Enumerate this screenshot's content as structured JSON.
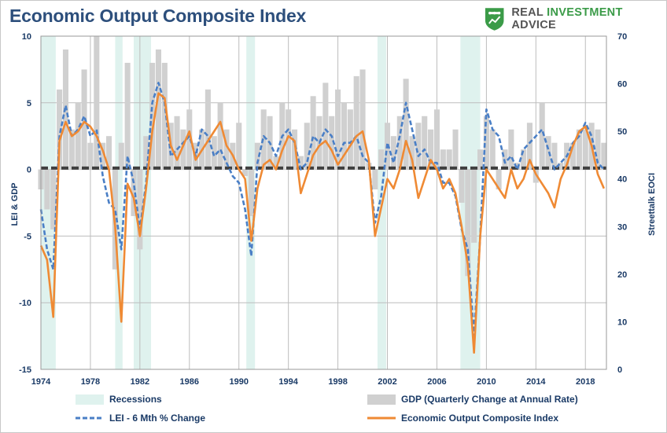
{
  "header": {
    "title": "Economic Output Composite Index",
    "brand_prefix": "REAL ",
    "brand_accent": "INVESTMENT",
    "brand_suffix": " ADVICE",
    "brand_icon": "shield-chart-icon"
  },
  "colors": {
    "title": "#2d4f7c",
    "recession": "#dff2ee",
    "gdp": "#d0d0d0",
    "lei": "#4a7fc6",
    "eoci": "#ef8a34",
    "zero_line": "#404040",
    "grid": "#bdbdbd",
    "brand_green": "#3b9b48"
  },
  "chart_data": {
    "type": "line",
    "title": "Economic Output Composite Index",
    "xlabel": "",
    "ylabel_left": "LEI & GDP",
    "ylabel_right": "Streettalk EOCI",
    "xlim": [
      1974,
      2019.7
    ],
    "ylim_left": [
      -15,
      10
    ],
    "ylim_right": [
      0,
      70
    ],
    "x_ticks": [
      1974,
      1978,
      1982,
      1986,
      1990,
      1994,
      1998,
      2002,
      2006,
      2010,
      2014,
      2018
    ],
    "x_tick_labels": [
      "1974",
      "1978",
      "1982",
      "1986",
      "1990",
      "1994",
      "1998",
      "2002",
      "2006",
      "2010",
      "2014",
      "2018"
    ],
    "y_left_ticks": [
      10,
      5,
      0,
      -5,
      -10,
      -15
    ],
    "y_left_tick_labels": [
      "10",
      "5",
      "0",
      "-5",
      "-10",
      "-15"
    ],
    "y_right_ticks": [
      70,
      60,
      50,
      40,
      30,
      20,
      10,
      0
    ],
    "y_right_tick_labels": [
      "70",
      "60",
      "50",
      "40",
      "30",
      "20",
      "10",
      "0"
    ],
    "zero_line_value": 0.1,
    "recessions": [
      [
        1974.0,
        1975.2
      ],
      [
        1980.0,
        1980.6
      ],
      [
        1981.5,
        1982.9
      ],
      [
        1990.6,
        1991.3
      ],
      [
        2001.2,
        2001.9
      ],
      [
        2007.9,
        2009.5
      ]
    ],
    "legend": [
      {
        "name": "Recessions",
        "kind": "band"
      },
      {
        "name": "GDP (Quarterly Change at Annual Rate)",
        "kind": "bar"
      },
      {
        "name": "LEI - 6 Mth % Change",
        "kind": "dashed-line"
      },
      {
        "name": "Economic Output Composite Index",
        "kind": "line"
      }
    ],
    "series": [
      {
        "name": "GDP (Quarterly Change at Annual Rate)",
        "axis": "left",
        "kind": "bar",
        "x": [
          1974.0,
          1974.5,
          1975.0,
          1975.5,
          1976.0,
          1976.5,
          1977.0,
          1977.5,
          1978.0,
          1978.5,
          1979.0,
          1979.5,
          1980.0,
          1980.5,
          1981.0,
          1981.5,
          1982.0,
          1982.5,
          1983.0,
          1983.5,
          1984.0,
          1984.5,
          1985.0,
          1985.5,
          1986.0,
          1986.5,
          1987.0,
          1987.5,
          1988.0,
          1988.5,
          1989.0,
          1989.5,
          1990.0,
          1990.5,
          1991.0,
          1991.5,
          1992.0,
          1992.5,
          1993.0,
          1993.5,
          1994.0,
          1994.5,
          1995.0,
          1995.5,
          1996.0,
          1996.5,
          1997.0,
          1997.5,
          1998.0,
          1998.5,
          1999.0,
          1999.5,
          2000.0,
          2000.5,
          2001.0,
          2001.5,
          2002.0,
          2002.5,
          2003.0,
          2003.5,
          2004.0,
          2004.5,
          2005.0,
          2005.5,
          2006.0,
          2006.5,
          2007.0,
          2007.5,
          2008.0,
          2008.5,
          2009.0,
          2009.5,
          2010.0,
          2010.5,
          2011.0,
          2011.5,
          2012.0,
          2012.5,
          2013.0,
          2013.5,
          2014.0,
          2014.5,
          2015.0,
          2015.5,
          2016.0,
          2016.5,
          2017.0,
          2017.5,
          2018.0,
          2018.5,
          2019.0,
          2019.5
        ],
        "values": [
          -1.5,
          -3.0,
          -4.5,
          6.0,
          9.0,
          3.0,
          5.0,
          7.5,
          2.0,
          10.0,
          2.0,
          2.5,
          -7.5,
          2.0,
          8.0,
          -3.5,
          -6.0,
          2.5,
          8.0,
          9.0,
          8.0,
          3.5,
          4.0,
          3.0,
          4.5,
          2.0,
          3.0,
          6.0,
          2.5,
          5.0,
          3.0,
          2.0,
          3.5,
          -0.5,
          -3.5,
          2.0,
          4.5,
          4.0,
          1.0,
          5.0,
          4.5,
          3.0,
          1.0,
          3.5,
          5.5,
          4.0,
          6.5,
          4.0,
          6.0,
          5.0,
          4.5,
          7.0,
          7.5,
          0.5,
          -1.5,
          1.5,
          3.5,
          2.5,
          4.0,
          6.8,
          2.5,
          3.5,
          4.0,
          3.0,
          4.5,
          1.5,
          1.5,
          3.0,
          -2.5,
          -8.0,
          -5.5,
          1.5,
          4.0,
          3.0,
          -1.5,
          1.5,
          3.0,
          0.5,
          1.5,
          3.5,
          -1.0,
          5.0,
          2.5,
          2.0,
          0.5,
          2.0,
          2.0,
          3.0,
          3.0,
          3.5,
          3.0,
          2.0
        ]
      },
      {
        "name": "LEI - 6 Mth % Change",
        "axis": "left",
        "kind": "dashed-line",
        "x": [
          1974.0,
          1974.5,
          1975.0,
          1975.5,
          1976.0,
          1976.5,
          1977.0,
          1977.5,
          1978.0,
          1978.5,
          1979.0,
          1979.5,
          1980.0,
          1980.5,
          1981.0,
          1981.5,
          1982.0,
          1982.5,
          1983.0,
          1983.5,
          1984.0,
          1984.5,
          1985.0,
          1985.5,
          1986.0,
          1986.5,
          1987.0,
          1987.5,
          1988.0,
          1988.5,
          1989.0,
          1989.5,
          1990.0,
          1990.5,
          1991.0,
          1991.5,
          1992.0,
          1992.5,
          1993.0,
          1993.5,
          1994.0,
          1994.5,
          1995.0,
          1995.5,
          1996.0,
          1996.5,
          1997.0,
          1997.5,
          1998.0,
          1998.5,
          1999.0,
          1999.5,
          2000.0,
          2000.5,
          2001.0,
          2001.5,
          2002.0,
          2002.5,
          2003.0,
          2003.5,
          2004.0,
          2004.5,
          2005.0,
          2005.5,
          2006.0,
          2006.5,
          2007.0,
          2007.5,
          2008.0,
          2008.5,
          2009.0,
          2009.5,
          2010.0,
          2010.5,
          2011.0,
          2011.5,
          2012.0,
          2012.5,
          2013.0,
          2013.5,
          2014.0,
          2014.5,
          2015.0,
          2015.5,
          2016.0,
          2016.5,
          2017.0,
          2017.5,
          2018.0,
          2018.5,
          2019.0,
          2019.5
        ],
        "values": [
          -3.0,
          -6.0,
          -7.5,
          2.5,
          4.8,
          2.5,
          3.0,
          4.0,
          2.5,
          3.0,
          -0.5,
          -2.5,
          -3.0,
          -6.0,
          1.0,
          -1.0,
          -4.5,
          -1.0,
          5.0,
          6.5,
          5.0,
          1.0,
          1.5,
          2.0,
          2.5,
          1.0,
          3.0,
          2.5,
          1.0,
          1.5,
          0.5,
          -0.5,
          -1.0,
          -3.0,
          -6.5,
          0.5,
          2.5,
          2.0,
          1.0,
          2.5,
          3.0,
          2.0,
          0.0,
          0.5,
          2.5,
          2.0,
          3.0,
          2.5,
          1.0,
          2.0,
          2.0,
          2.5,
          1.0,
          0.5,
          -4.0,
          -2.0,
          2.0,
          0.5,
          2.5,
          5.0,
          3.0,
          1.0,
          1.5,
          0.5,
          0.5,
          -1.0,
          -1.0,
          -2.0,
          -4.5,
          -6.0,
          -12.5,
          -5.0,
          4.5,
          3.0,
          2.5,
          0.5,
          1.0,
          0.0,
          1.5,
          2.0,
          2.5,
          3.0,
          1.5,
          0.0,
          0.5,
          1.0,
          2.0,
          2.5,
          3.5,
          2.5,
          0.5,
          0.0
        ]
      },
      {
        "name": "Economic Output Composite Index",
        "axis": "right",
        "kind": "line",
        "x": [
          1974.0,
          1974.5,
          1975.0,
          1975.5,
          1976.0,
          1976.5,
          1977.0,
          1977.5,
          1978.0,
          1978.5,
          1979.0,
          1979.5,
          1980.0,
          1980.5,
          1981.0,
          1981.5,
          1982.0,
          1982.5,
          1983.0,
          1983.5,
          1984.0,
          1984.5,
          1985.0,
          1985.5,
          1986.0,
          1986.5,
          1987.0,
          1987.5,
          1988.0,
          1988.5,
          1989.0,
          1989.5,
          1990.0,
          1990.5,
          1991.0,
          1991.5,
          1992.0,
          1992.5,
          1993.0,
          1993.5,
          1994.0,
          1994.5,
          1995.0,
          1995.5,
          1996.0,
          1996.5,
          1997.0,
          1997.5,
          1998.0,
          1998.5,
          1999.0,
          1999.5,
          2000.0,
          2000.5,
          2001.0,
          2001.5,
          2002.0,
          2002.5,
          2003.0,
          2003.5,
          2004.0,
          2004.5,
          2005.0,
          2005.5,
          2006.0,
          2006.5,
          2007.0,
          2007.5,
          2008.0,
          2008.5,
          2009.0,
          2009.5,
          2010.0,
          2010.5,
          2011.0,
          2011.5,
          2012.0,
          2012.5,
          2013.0,
          2013.5,
          2014.0,
          2014.5,
          2015.0,
          2015.5,
          2016.0,
          2016.5,
          2017.0,
          2017.5,
          2018.0,
          2018.5,
          2019.0,
          2019.5
        ],
        "values": [
          26.0,
          23.0,
          11.0,
          48.0,
          52.0,
          49.0,
          50.0,
          52.0,
          51.0,
          49.0,
          46.0,
          42.0,
          30.0,
          10.0,
          39.0,
          36.0,
          28.0,
          38.0,
          50.0,
          58.0,
          57.0,
          47.0,
          44.0,
          47.0,
          50.0,
          44.0,
          46.0,
          48.0,
          50.0,
          52.0,
          47.0,
          45.0,
          42.0,
          40.0,
          27.0,
          38.0,
          43.0,
          44.0,
          42.0,
          46.0,
          49.0,
          48.0,
          37.0,
          41.0,
          45.0,
          47.0,
          48.0,
          46.0,
          43.0,
          45.0,
          47.0,
          49.0,
          50.0,
          44.0,
          28.0,
          34.0,
          40.0,
          38.0,
          42.0,
          48.0,
          44.0,
          36.0,
          40.0,
          44.0,
          42.0,
          38.0,
          40.0,
          37.0,
          30.0,
          22.0,
          3.5,
          28.0,
          42.0,
          40.0,
          38.0,
          36.0,
          42.0,
          38.0,
          40.0,
          44.0,
          41.0,
          39.0,
          37.0,
          34.0,
          40.0,
          43.0,
          47.0,
          50.0,
          51.0,
          47.0,
          41.0,
          38.0
        ]
      }
    ]
  }
}
